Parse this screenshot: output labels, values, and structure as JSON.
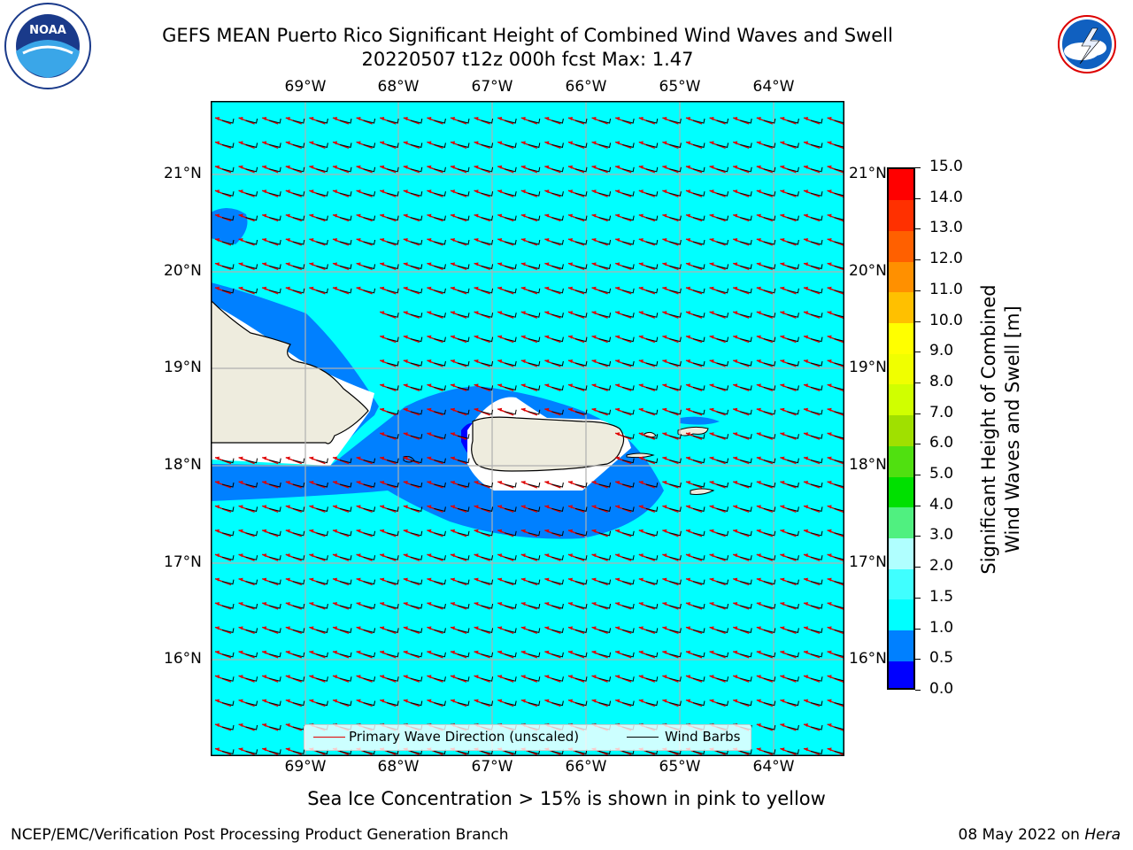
{
  "title_line1": "GEFS MEAN Puerto Rico Significant Height of Combined Wind Waves and Swell",
  "title_line2": "20220507 t12z 000h fcst   Max: 1.47",
  "lon_labels": [
    "69°W",
    "68°W",
    "67°W",
    "66°W",
    "65°W",
    "64°W"
  ],
  "lat_labels": [
    "21°N",
    "20°N",
    "19°N",
    "18°N",
    "17°N",
    "16°N"
  ],
  "colorbar": {
    "title_line1": "Significant Height of Combined",
    "title_line2": "Wind Waves and Swell [m]",
    "ticks": [
      "0.0",
      "0.5",
      "1.0",
      "1.5",
      "2.0",
      "3.0",
      "4.0",
      "5.0",
      "6.0",
      "7.0",
      "8.0",
      "9.0",
      "10.0",
      "11.0",
      "12.0",
      "13.0",
      "14.0",
      "15.0"
    ],
    "colors": [
      "#0000ff",
      "#0080ff",
      "#00ffff",
      "#40ffff",
      "#b0ffff",
      "#50f080",
      "#00e000",
      "#50e010",
      "#a0e000",
      "#d0ff00",
      "#f0ff00",
      "#ffff00",
      "#ffc000",
      "#ff9000",
      "#ff6000",
      "#ff3000",
      "#ff0000"
    ]
  },
  "legend": {
    "wave_dir": "Primary Wave Direction (unscaled)",
    "wind_barbs": "Wind Barbs",
    "wave_color": "#e00000",
    "barb_color": "#000000"
  },
  "ice_note": "Sea Ice Concentration > 15% is shown in pink to yellow",
  "footer_left": "NCEP/EMC/Verification Post Processing Product Generation Branch",
  "footer_date": "08 May 2022 on ",
  "footer_machine": "Hera",
  "map_colors": {
    "ocean_main": "#00ffff",
    "ocean_mid": "#0080ff",
    "ocean_low": "#0000ff",
    "land": "#eeecde",
    "grid": "#b0b0b0"
  }
}
